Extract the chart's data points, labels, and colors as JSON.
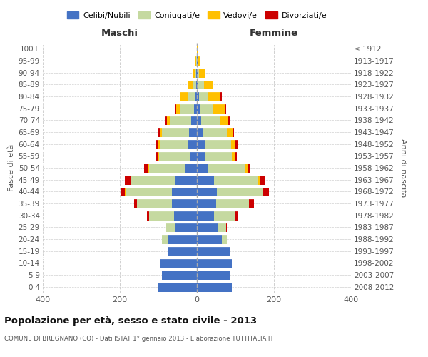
{
  "age_groups": [
    "0-4",
    "5-9",
    "10-14",
    "15-19",
    "20-24",
    "25-29",
    "30-34",
    "35-39",
    "40-44",
    "45-49",
    "50-54",
    "55-59",
    "60-64",
    "65-69",
    "70-74",
    "75-79",
    "80-84",
    "85-89",
    "90-94",
    "95-99",
    "100+"
  ],
  "birth_years": [
    "2008-2012",
    "2003-2007",
    "1998-2002",
    "1993-1997",
    "1988-1992",
    "1983-1987",
    "1978-1982",
    "1973-1977",
    "1968-1972",
    "1963-1967",
    "1958-1962",
    "1953-1957",
    "1948-1952",
    "1943-1947",
    "1938-1942",
    "1933-1937",
    "1928-1932",
    "1923-1927",
    "1918-1922",
    "1913-1917",
    "≤ 1912"
  ],
  "colors": {
    "celibi": "#4472c4",
    "coniugati": "#c5d9a0",
    "vedovi": "#ffc000",
    "divorziati": "#cc0000"
  },
  "maschi": {
    "celibi": [
      100,
      90,
      95,
      75,
      75,
      55,
      60,
      65,
      65,
      55,
      30,
      18,
      22,
      20,
      15,
      8,
      5,
      2,
      1,
      0,
      0
    ],
    "coniugati": [
      0,
      0,
      0,
      0,
      15,
      25,
      65,
      90,
      120,
      115,
      95,
      80,
      75,
      70,
      55,
      35,
      20,
      8,
      3,
      1,
      0
    ],
    "vedovi": [
      0,
      0,
      0,
      0,
      0,
      0,
      0,
      0,
      2,
      2,
      2,
      2,
      3,
      5,
      8,
      10,
      18,
      15,
      5,
      2,
      0
    ],
    "divorziati": [
      0,
      0,
      0,
      0,
      0,
      0,
      5,
      8,
      12,
      15,
      10,
      8,
      5,
      5,
      5,
      2,
      0,
      0,
      0,
      0,
      0
    ]
  },
  "femmine": {
    "celibi": [
      90,
      85,
      90,
      85,
      65,
      55,
      45,
      50,
      52,
      45,
      28,
      20,
      20,
      15,
      12,
      7,
      5,
      3,
      2,
      1,
      0
    ],
    "coniugati": [
      0,
      0,
      0,
      0,
      12,
      20,
      55,
      85,
      118,
      115,
      98,
      70,
      68,
      62,
      50,
      35,
      22,
      15,
      4,
      2,
      0
    ],
    "vedovi": [
      0,
      0,
      0,
      0,
      0,
      0,
      0,
      1,
      2,
      3,
      5,
      8,
      12,
      15,
      20,
      30,
      35,
      25,
      15,
      5,
      1
    ],
    "divorziati": [
      0,
      0,
      0,
      0,
      0,
      3,
      5,
      12,
      15,
      15,
      8,
      5,
      5,
      5,
      5,
      3,
      2,
      0,
      0,
      0,
      0
    ]
  },
  "title": "Popolazione per età, sesso e stato civile - 2013",
  "subtitle": "COMUNE DI BREGNANO (CO) - Dati ISTAT 1° gennaio 2013 - Elaborazione TUTTITALIA.IT",
  "xlabel_left": "Maschi",
  "xlabel_right": "Femmine",
  "ylabel_left": "Fasce di età",
  "ylabel_right": "Anni di nascita",
  "xlim": 400,
  "legend_labels": [
    "Celibi/Nubili",
    "Coniugati/e",
    "Vedovi/e",
    "Divorziati/e"
  ],
  "background_color": "#ffffff",
  "grid_color": "#d0d0d0"
}
